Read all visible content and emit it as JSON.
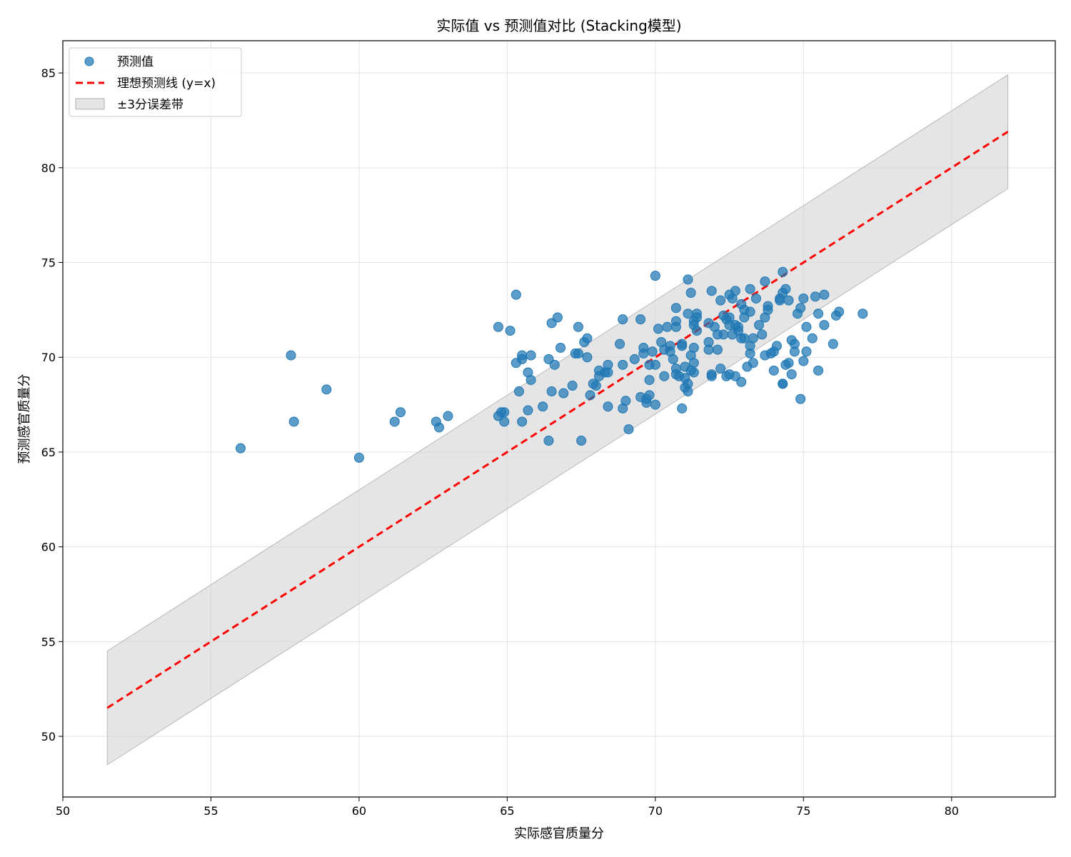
{
  "chart_data": {
    "type": "scatter",
    "title": "实际值 vs 预测值对比 (Stacking模型)",
    "xlabel": "实际感官质量分",
    "ylabel": "预测感官质量分",
    "xlim": [
      50,
      83.5
    ],
    "ylim": [
      46.8,
      86.7
    ],
    "xticks": [
      50,
      55,
      60,
      65,
      70,
      75,
      80
    ],
    "yticks": [
      50,
      55,
      60,
      65,
      70,
      75,
      80,
      85
    ],
    "grid": true,
    "legend_position": "top-left",
    "colors": {
      "points": "#1f77b4",
      "ideal_line": "#ff0000",
      "band": "#d3d3d3"
    },
    "series": [
      {
        "name": "预测值",
        "kind": "scatter",
        "points": [
          [
            56.0,
            65.2
          ],
          [
            57.7,
            70.1
          ],
          [
            57.8,
            66.6
          ],
          [
            58.9,
            68.3
          ],
          [
            60.0,
            64.7
          ],
          [
            61.2,
            66.6
          ],
          [
            61.4,
            67.1
          ],
          [
            62.6,
            66.6
          ],
          [
            62.7,
            66.3
          ],
          [
            63.0,
            66.9
          ],
          [
            64.7,
            71.6
          ],
          [
            64.7,
            66.9
          ],
          [
            64.9,
            67.1
          ],
          [
            64.8,
            67.1
          ],
          [
            64.9,
            66.6
          ],
          [
            65.1,
            71.4
          ],
          [
            65.3,
            73.3
          ],
          [
            65.3,
            69.7
          ],
          [
            65.4,
            68.2
          ],
          [
            65.5,
            70.1
          ],
          [
            65.5,
            69.9
          ],
          [
            65.5,
            66.6
          ],
          [
            65.7,
            67.2
          ],
          [
            65.7,
            69.2
          ],
          [
            65.8,
            68.8
          ],
          [
            65.8,
            70.1
          ],
          [
            66.2,
            67.4
          ],
          [
            66.4,
            69.9
          ],
          [
            66.4,
            65.6
          ],
          [
            66.5,
            68.2
          ],
          [
            66.5,
            71.8
          ],
          [
            66.6,
            69.6
          ],
          [
            66.7,
            72.1
          ],
          [
            66.8,
            70.5
          ],
          [
            66.9,
            68.1
          ],
          [
            67.2,
            68.5
          ],
          [
            67.3,
            70.2
          ],
          [
            67.4,
            70.2
          ],
          [
            67.4,
            71.6
          ],
          [
            67.5,
            65.6
          ],
          [
            67.6,
            70.8
          ],
          [
            67.7,
            70.0
          ],
          [
            67.7,
            71.0
          ],
          [
            67.8,
            68.0
          ],
          [
            67.9,
            68.6
          ],
          [
            68.0,
            68.5
          ],
          [
            68.1,
            69.0
          ],
          [
            68.1,
            69.3
          ],
          [
            68.3,
            69.2
          ],
          [
            68.4,
            69.6
          ],
          [
            68.4,
            69.2
          ],
          [
            68.4,
            67.4
          ],
          [
            68.8,
            70.7
          ],
          [
            68.9,
            72.0
          ],
          [
            68.9,
            69.6
          ],
          [
            68.9,
            67.3
          ],
          [
            69.0,
            67.7
          ],
          [
            69.1,
            66.2
          ],
          [
            69.3,
            69.9
          ],
          [
            69.5,
            72.0
          ],
          [
            69.5,
            67.9
          ],
          [
            69.6,
            70.5
          ],
          [
            69.6,
            70.2
          ],
          [
            69.7,
            67.8
          ],
          [
            69.7,
            67.6
          ],
          [
            69.8,
            68.0
          ],
          [
            69.8,
            69.6
          ],
          [
            69.8,
            68.8
          ],
          [
            69.9,
            70.3
          ],
          [
            70.0,
            69.6
          ],
          [
            70.0,
            67.5
          ],
          [
            70.0,
            74.3
          ],
          [
            70.1,
            71.5
          ],
          [
            70.2,
            70.8
          ],
          [
            70.3,
            70.4
          ],
          [
            70.3,
            69.0
          ],
          [
            70.4,
            71.6
          ],
          [
            70.5,
            70.6
          ],
          [
            70.5,
            70.3
          ],
          [
            70.6,
            69.9
          ],
          [
            70.7,
            71.6
          ],
          [
            70.7,
            71.9
          ],
          [
            70.7,
            72.6
          ],
          [
            70.7,
            69.4
          ],
          [
            70.7,
            69.1
          ],
          [
            70.8,
            69.0
          ],
          [
            70.9,
            70.7
          ],
          [
            70.9,
            70.6
          ],
          [
            70.9,
            67.3
          ],
          [
            71.0,
            69.5
          ],
          [
            71.0,
            68.9
          ],
          [
            71.0,
            68.4
          ],
          [
            71.1,
            68.2
          ],
          [
            71.1,
            68.6
          ],
          [
            71.1,
            72.3
          ],
          [
            71.1,
            74.1
          ],
          [
            71.2,
            73.4
          ],
          [
            71.2,
            70.1
          ],
          [
            71.2,
            69.3
          ],
          [
            71.3,
            71.9
          ],
          [
            71.3,
            71.7
          ],
          [
            71.3,
            69.2
          ],
          [
            71.3,
            69.7
          ],
          [
            71.3,
            70.5
          ],
          [
            71.4,
            72.1
          ],
          [
            71.4,
            72.3
          ],
          [
            71.4,
            71.4
          ],
          [
            71.8,
            71.8
          ],
          [
            71.8,
            70.8
          ],
          [
            71.8,
            70.4
          ],
          [
            71.9,
            73.5
          ],
          [
            71.9,
            69.0
          ],
          [
            71.9,
            69.1
          ],
          [
            72.0,
            71.6
          ],
          [
            72.1,
            70.4
          ],
          [
            72.1,
            71.2
          ],
          [
            72.2,
            73.0
          ],
          [
            72.2,
            69.4
          ],
          [
            72.3,
            71.2
          ],
          [
            72.3,
            72.2
          ],
          [
            72.4,
            72.0
          ],
          [
            72.4,
            69.0
          ],
          [
            72.5,
            73.3
          ],
          [
            72.5,
            69.1
          ],
          [
            72.5,
            72.1
          ],
          [
            72.5,
            71.7
          ],
          [
            72.6,
            73.1
          ],
          [
            72.6,
            71.2
          ],
          [
            72.7,
            73.5
          ],
          [
            72.7,
            71.7
          ],
          [
            72.7,
            69.0
          ],
          [
            72.8,
            71.4
          ],
          [
            72.8,
            71.6
          ],
          [
            72.9,
            68.7
          ],
          [
            72.9,
            72.8
          ],
          [
            72.9,
            71.0
          ],
          [
            73.0,
            72.5
          ],
          [
            73.0,
            72.1
          ],
          [
            73.0,
            71.0
          ],
          [
            73.1,
            69.5
          ],
          [
            73.2,
            73.6
          ],
          [
            73.2,
            72.4
          ],
          [
            73.2,
            70.6
          ],
          [
            73.2,
            70.2
          ],
          [
            73.3,
            69.7
          ],
          [
            73.3,
            71.0
          ],
          [
            73.4,
            73.1
          ],
          [
            73.5,
            71.7
          ],
          [
            73.6,
            71.2
          ],
          [
            73.7,
            70.1
          ],
          [
            73.7,
            72.1
          ],
          [
            73.7,
            74.0
          ],
          [
            73.8,
            72.7
          ],
          [
            73.8,
            72.5
          ],
          [
            73.9,
            70.2
          ],
          [
            74.0,
            69.3
          ],
          [
            74.0,
            70.3
          ],
          [
            74.1,
            70.6
          ],
          [
            74.2,
            73.1
          ],
          [
            74.2,
            73.0
          ],
          [
            74.3,
            74.5
          ],
          [
            74.3,
            73.4
          ],
          [
            74.3,
            68.6
          ],
          [
            74.3,
            68.6
          ],
          [
            74.4,
            73.6
          ],
          [
            74.4,
            69.6
          ],
          [
            74.5,
            69.7
          ],
          [
            74.5,
            73.0
          ],
          [
            74.6,
            70.9
          ],
          [
            74.6,
            69.1
          ],
          [
            74.7,
            70.7
          ],
          [
            74.7,
            70.3
          ],
          [
            74.8,
            72.3
          ],
          [
            74.9,
            72.6
          ],
          [
            74.9,
            67.8
          ],
          [
            75.0,
            69.8
          ],
          [
            75.0,
            73.1
          ],
          [
            75.1,
            71.6
          ],
          [
            75.1,
            70.3
          ],
          [
            75.3,
            71.0
          ],
          [
            75.4,
            73.2
          ],
          [
            75.5,
            72.3
          ],
          [
            75.5,
            69.3
          ],
          [
            75.7,
            73.3
          ],
          [
            75.7,
            71.7
          ],
          [
            76.0,
            70.7
          ],
          [
            76.1,
            72.2
          ],
          [
            76.2,
            72.4
          ],
          [
            77.0,
            72.3
          ]
        ]
      },
      {
        "name": "理想预测线 (y=x)",
        "kind": "line",
        "x": [
          51.5,
          81.9
        ],
        "y": [
          51.5,
          81.9
        ]
      },
      {
        "name": "±3分误差带",
        "kind": "band",
        "x": [
          51.5,
          81.9
        ],
        "offset": 3
      }
    ]
  }
}
